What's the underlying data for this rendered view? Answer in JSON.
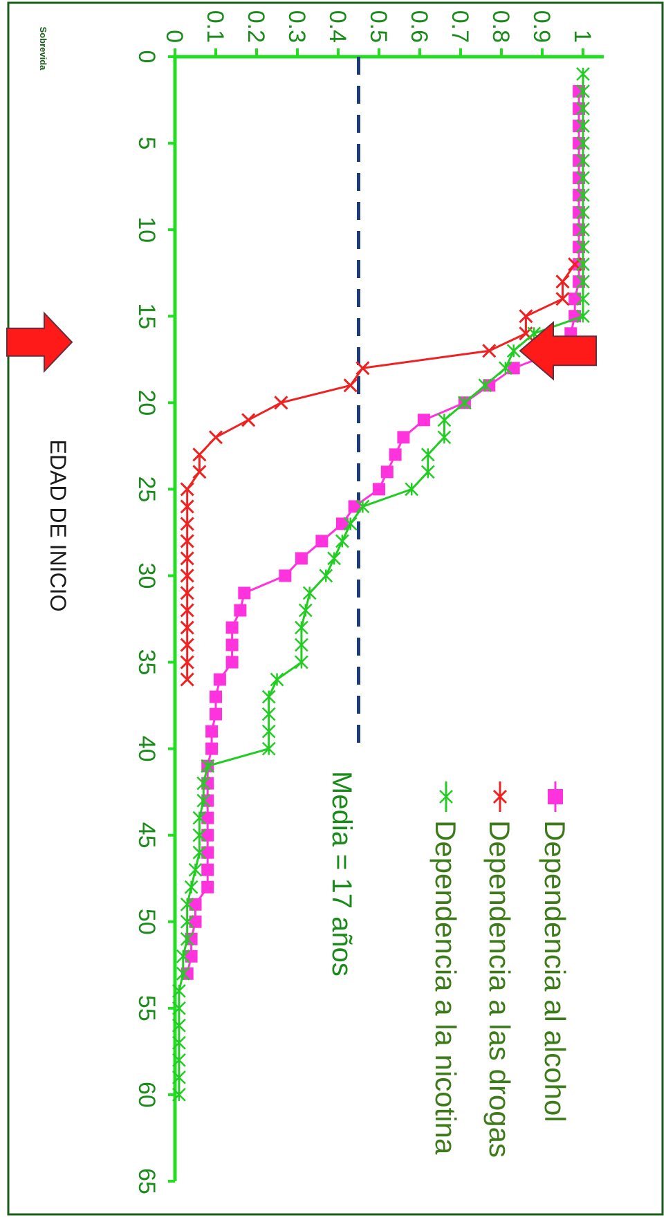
{
  "chart_data": {
    "type": "line",
    "orientation": "rotated-90-clockwise",
    "xlabel": "EDAD DE INICIO",
    "ylabel": "Sobrevida",
    "xlim": [
      0,
      65
    ],
    "ylim": [
      0,
      1
    ],
    "x_ticks": [
      "0",
      "5",
      "10",
      "15",
      "20",
      "25",
      "30",
      "35",
      "40",
      "45",
      "50",
      "55",
      "60",
      "65"
    ],
    "y_ticks": [
      "0",
      "0.1",
      "0.2",
      "0.3",
      "0.4",
      "0.5",
      "0.6",
      "0.7",
      "0.8",
      "0.9",
      "1"
    ],
    "legend_position": "top-right",
    "annotation": "Media = 17 años",
    "reference_line": {
      "y": 0.45,
      "x_range": [
        0,
        40
      ],
      "style": "dashed",
      "color": "#1f3a7a"
    },
    "arrows": [
      {
        "points_at_x": 16.5,
        "side": "top",
        "color": "#ff1a1a"
      },
      {
        "points_at_x": 17,
        "side": "axis",
        "color": "#ff1a1a"
      }
    ],
    "series": [
      {
        "name": "Dependencia al alcohol",
        "color": "#ff33dd",
        "marker": "square",
        "x": [
          2,
          3,
          4,
          5,
          6,
          7,
          8,
          9,
          10,
          11,
          12,
          13,
          14,
          15,
          16,
          17,
          18,
          19,
          20,
          21,
          22,
          23,
          24,
          25,
          26,
          27,
          28,
          29,
          30,
          31,
          32,
          33,
          34,
          35,
          36,
          37,
          38,
          39,
          40,
          41,
          42,
          43,
          44,
          45,
          46,
          47,
          48,
          49,
          50,
          51,
          52,
          53
        ],
        "y": [
          0.99,
          0.99,
          0.99,
          0.99,
          0.99,
          0.99,
          0.99,
          0.99,
          0.99,
          0.99,
          0.99,
          0.99,
          0.98,
          0.98,
          0.97,
          0.94,
          0.83,
          0.77,
          0.71,
          0.61,
          0.56,
          0.54,
          0.52,
          0.5,
          0.44,
          0.41,
          0.36,
          0.31,
          0.27,
          0.17,
          0.16,
          0.14,
          0.14,
          0.14,
          0.11,
          0.1,
          0.1,
          0.09,
          0.09,
          0.08,
          0.08,
          0.08,
          0.08,
          0.08,
          0.08,
          0.08,
          0.08,
          0.05,
          0.05,
          0.04,
          0.04,
          0.03
        ]
      },
      {
        "name": "Dependencia a las drogas",
        "color": "#ee2222",
        "marker": "x",
        "x": [
          12,
          13,
          14,
          15,
          16,
          17,
          18,
          19,
          20,
          21,
          22,
          23,
          24,
          25,
          26,
          27,
          28,
          29,
          30,
          31,
          32,
          33,
          34,
          35,
          36
        ],
        "y": [
          0.98,
          0.95,
          0.95,
          0.86,
          0.86,
          0.77,
          0.46,
          0.43,
          0.26,
          0.18,
          0.1,
          0.06,
          0.06,
          0.03,
          0.03,
          0.03,
          0.03,
          0.03,
          0.03,
          0.03,
          0.03,
          0.03,
          0.03,
          0.03,
          0.03
        ]
      },
      {
        "name": "Dependencia a la nicotina",
        "color": "#22cc22",
        "marker": "asterisk",
        "x": [
          1,
          2,
          3,
          4,
          5,
          6,
          7,
          8,
          9,
          10,
          11,
          12,
          13,
          14,
          15,
          16,
          17,
          18,
          19,
          20,
          21,
          22,
          23,
          24,
          25,
          26,
          27,
          28,
          29,
          30,
          31,
          32,
          33,
          34,
          35,
          36,
          37,
          38,
          39,
          40,
          41,
          42,
          43,
          44,
          45,
          46,
          47,
          48,
          49,
          50,
          51,
          52,
          53,
          54,
          55,
          56,
          57,
          58,
          59,
          60
        ],
        "y": [
          1,
          1,
          1,
          1,
          1,
          1,
          1,
          1,
          1,
          1,
          1,
          1,
          1,
          1,
          1,
          0.88,
          0.83,
          0.81,
          0.76,
          0.71,
          0.66,
          0.66,
          0.62,
          0.62,
          0.58,
          0.46,
          0.43,
          0.41,
          0.39,
          0.37,
          0.33,
          0.32,
          0.31,
          0.31,
          0.31,
          0.25,
          0.23,
          0.23,
          0.23,
          0.23,
          0.08,
          0.07,
          0.07,
          0.06,
          0.06,
          0.06,
          0.05,
          0.04,
          0.03,
          0.03,
          0.03,
          0.02,
          0.02,
          0.01,
          0.01,
          0.01,
          0.01,
          0.01,
          0.01,
          0.01
        ]
      }
    ]
  }
}
